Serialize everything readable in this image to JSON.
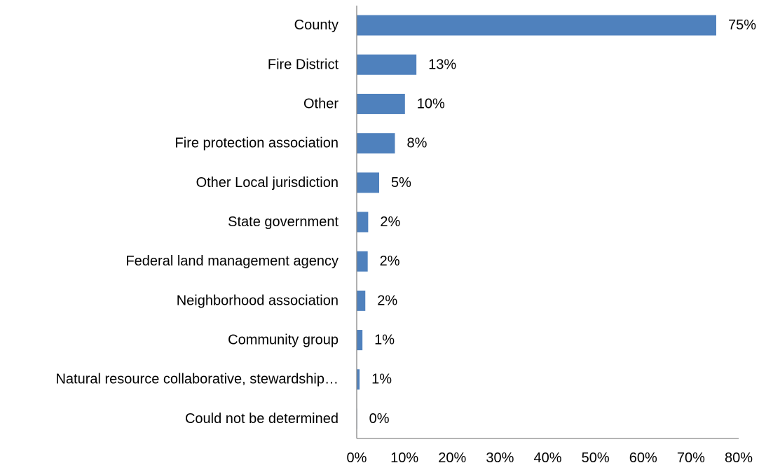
{
  "chart_data": {
    "type": "bar",
    "orientation": "horizontal",
    "categories": [
      "County",
      "Fire District",
      "Other",
      "Fire protection association",
      "Other Local jurisdiction",
      "State government",
      "Federal land management agency",
      "Neighborhood association",
      "Community group",
      "Natural resource collaborative, stewardship…",
      "Could not be determined"
    ],
    "values": [
      75,
      13,
      10,
      8,
      5,
      2,
      2,
      2,
      1,
      1,
      0
    ],
    "data_labels": [
      "75%",
      "13%",
      "10%",
      "8%",
      "5%",
      "2%",
      "2%",
      "2%",
      "1%",
      "1%",
      "0%"
    ],
    "bar_values_precise": [
      75.3,
      12.5,
      10.1,
      8.0,
      4.7,
      2.4,
      2.3,
      1.8,
      1.2,
      0.6,
      0.1
    ],
    "xlim": [
      0,
      80
    ],
    "x_ticks": [
      "0%",
      "10%",
      "20%",
      "30%",
      "40%",
      "50%",
      "60%",
      "70%",
      "80%"
    ],
    "x_tick_values": [
      0,
      10,
      20,
      30,
      40,
      50,
      60,
      70,
      80
    ],
    "grid": false,
    "legend": "none",
    "bar_color": "#4f81bd",
    "title": "",
    "xlabel": "",
    "ylabel": ""
  }
}
